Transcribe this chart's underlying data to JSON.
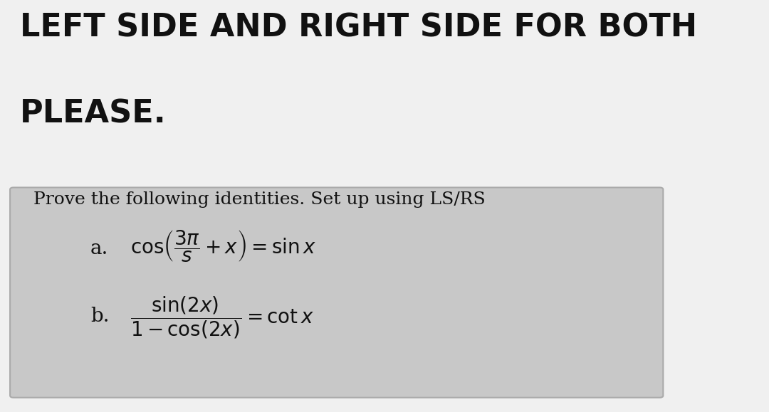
{
  "bg_color": "#f0f0f0",
  "header_line1": "LEFT SIDE AND RIGHT SIDE FOR BOTH",
  "header_line2": "PLEASE.",
  "box_bg": "#c8c8c8",
  "box_edge": "#aaaaaa",
  "box_text_intro": "Prove the following identities. Set up using LS/RS",
  "part_a_label": "a.",
  "part_b_label": "b.",
  "header_fontsize": 32,
  "intro_fontsize": 18,
  "formula_fontsize": 20,
  "label_fontsize": 20,
  "text_color": "#111111"
}
